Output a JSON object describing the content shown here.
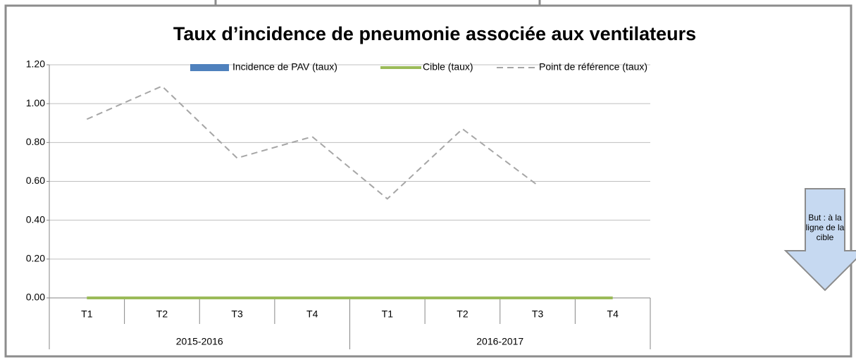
{
  "chart_data": {
    "type": "bar",
    "title": "Taux d’incidence de pneumonie associée aux ventilateurs",
    "categories": [
      "T1",
      "T2",
      "T3",
      "T4",
      "T1",
      "T2",
      "T3",
      "T4"
    ],
    "groups": [
      "2015-2016",
      "2016-2017"
    ],
    "series": [
      {
        "name": "Incidence de PAV (taux)",
        "type": "bar",
        "color": "#4f81bd",
        "values": [
          0,
          0,
          0,
          0,
          0,
          0,
          0,
          0
        ]
      },
      {
        "name": "Cible (taux)",
        "type": "line",
        "color": "#9bbb59",
        "values": [
          0,
          0,
          0,
          0,
          0,
          0,
          0,
          0
        ]
      },
      {
        "name": "Point de référence (taux)",
        "type": "line",
        "dashed": true,
        "color": "#a6a6a6",
        "values": [
          0.92,
          1.09,
          0.72,
          0.83,
          0.51,
          0.87,
          0.58,
          null
        ]
      }
    ],
    "ylim": [
      0,
      1.2
    ],
    "yticks": [
      {
        "value": 0,
        "label": "0.00"
      },
      {
        "value": 0.2,
        "label": "0.20"
      },
      {
        "value": 0.4,
        "label": "0.40"
      },
      {
        "value": 0.6,
        "label": "0.60"
      },
      {
        "value": 0.8,
        "label": "0.80"
      },
      {
        "value": 1.0,
        "label": "1.00"
      },
      {
        "value": 1.2,
        "label": "1.20"
      }
    ],
    "grid": true,
    "legend": "top",
    "annotation": "But : à la ligne de la cible"
  }
}
